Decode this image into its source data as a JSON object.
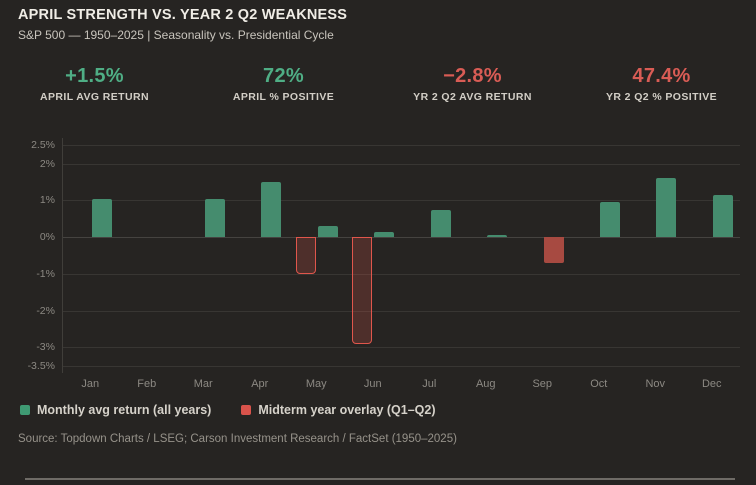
{
  "header": {
    "title": "APRIL STRENGTH VS. YEAR 2 Q2 WEAKNESS",
    "subtitle": "S&P 500 — 1950–2025 | Seasonality vs. Presidential Cycle"
  },
  "stats": [
    {
      "value": "+1.5%",
      "label": "APRIL AVG RETURN",
      "tone": "green"
    },
    {
      "value": "72%",
      "label": "APRIL % POSITIVE",
      "tone": "green"
    },
    {
      "value": "−2.8%",
      "label": "YR 2 Q2 AVG RETURN",
      "tone": "red"
    },
    {
      "value": "47.4%",
      "label": "YR 2 Q2 % POSITIVE",
      "tone": "red"
    }
  ],
  "chart_data": {
    "type": "bar",
    "title": "APRIL STRENGTH VS. YEAR 2 Q2 WEAKNESS",
    "categories": [
      "Jan",
      "Feb",
      "Mar",
      "Apr",
      "May",
      "Jun",
      "Jul",
      "Aug",
      "Sep",
      "Oct",
      "Nov",
      "Dec"
    ],
    "series": [
      {
        "name": "Monthly avg return (all years)",
        "values": [
          1.05,
          0.0,
          1.05,
          1.5,
          0.3,
          0.15,
          0.75,
          0.05,
          -0.7,
          0.95,
          1.6,
          1.15
        ]
      },
      {
        "name": "Midterm year overlay (Q1–Q2)",
        "values": [
          null,
          null,
          null,
          null,
          -1.0,
          -2.9,
          null,
          null,
          null,
          null,
          null,
          null
        ]
      }
    ],
    "xlabel": "",
    "ylabel": "",
    "ylim": [
      -3.5,
      2.5
    ],
    "yticks": [
      2.5,
      2,
      1,
      0,
      -1,
      -2,
      -3,
      -3.5
    ],
    "ytick_labels": [
      "2.5%",
      "2%",
      "1%",
      "0%",
      "-1%",
      "-2%",
      "-3%",
      "-3.5%"
    ],
    "grid": true,
    "legend_position": "bottom"
  },
  "legend": [
    {
      "label": "Monthly avg return (all years)",
      "swatch": "#3f9a73"
    },
    {
      "label": "Midterm year overlay (Q1–Q2)",
      "swatch": "#d9534b"
    }
  ],
  "source": "Source: Topdown Charts / LSEG; Carson Investment Research / FactSet (1950–2025)",
  "colors": {
    "green": "#4fae85",
    "red": "#d95c55",
    "bar_green": "#458c6e",
    "bar_red_solid": "#a74a41",
    "overlay_border": "#e0564c",
    "overlay_fill": "rgba(224,86,76,0.22)",
    "background": "#262422",
    "gridline": "#383633"
  }
}
